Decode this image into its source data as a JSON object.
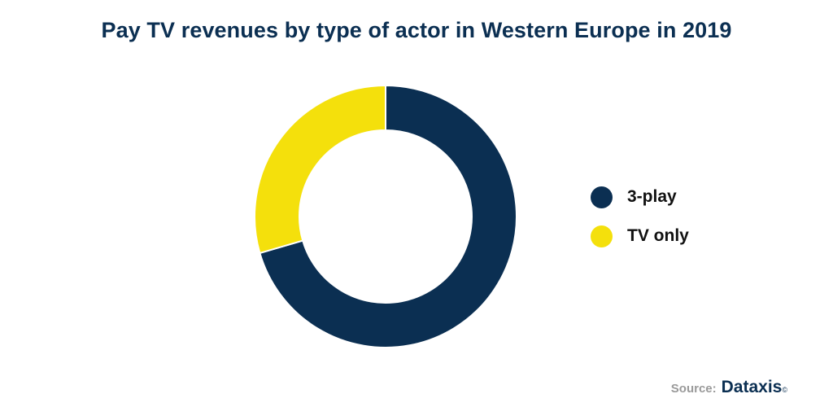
{
  "chart_data": {
    "type": "pie",
    "title": "Pay TV revenues by type of actor in Western Europe in 2019",
    "categories": [
      "3-play",
      "TV only"
    ],
    "values": [
      70.5,
      29.5
    ],
    "colors": [
      "#0b2f52",
      "#f4e00c"
    ],
    "donut": true,
    "legend_position": "right"
  },
  "source": {
    "label": "Source:",
    "brand": "Dataxis",
    "mark": "©"
  }
}
